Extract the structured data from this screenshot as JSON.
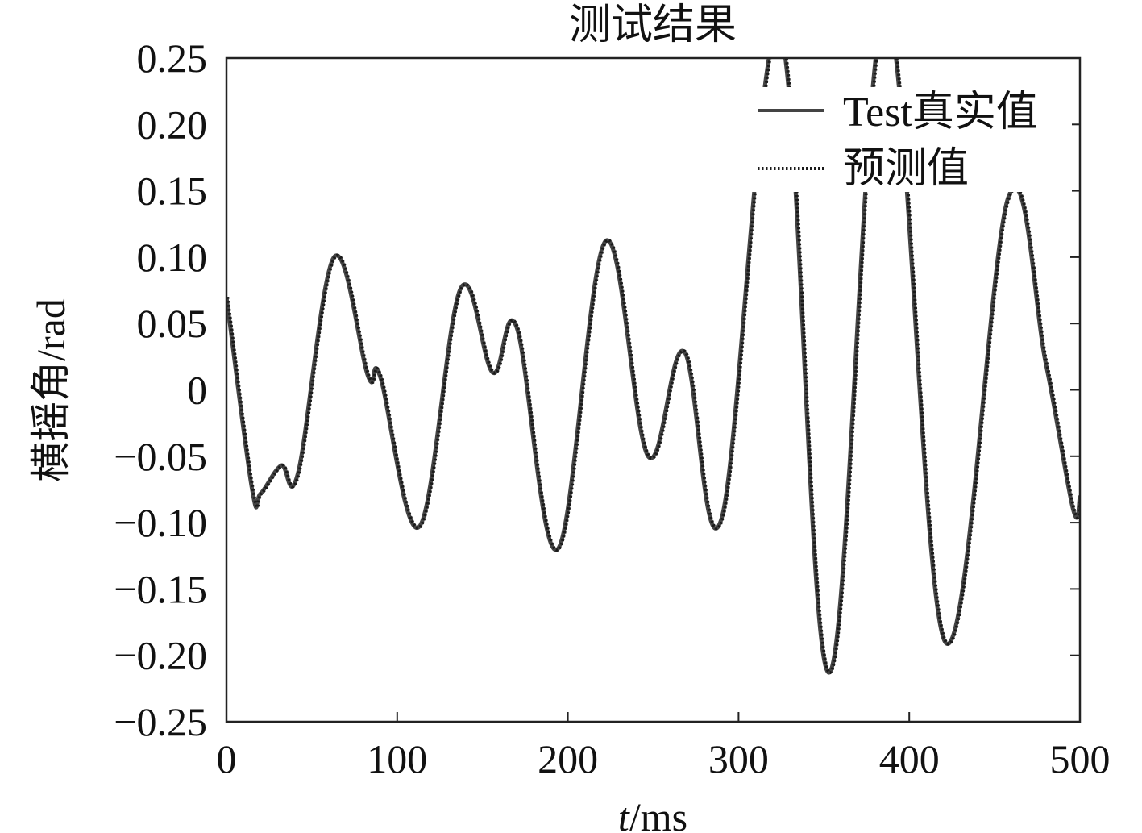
{
  "chart_data": {
    "type": "line",
    "title": "测试结果",
    "xlabel_var": "t",
    "xlabel_unit": "/ms",
    "ylabel": "横摇角/rad",
    "xlim": [
      0,
      500
    ],
    "ylim": [
      -0.25,
      0.25
    ],
    "x_ticks": [
      0,
      100,
      200,
      300,
      400,
      500
    ],
    "x_tick_labels": [
      "0",
      "100",
      "200",
      "300",
      "400",
      "500"
    ],
    "y_ticks": [
      0.25,
      0.2,
      0.15,
      0.1,
      0.05,
      0,
      -0.05,
      -0.1,
      -0.15,
      -0.2,
      -0.25
    ],
    "y_tick_labels": [
      "0.25",
      "0.20",
      "0.15",
      "0.10",
      "0.05",
      "0",
      "−0.05",
      "−0.10",
      "−0.15",
      "−0.20",
      "−0.25"
    ],
    "grid": false,
    "legend_position": "top-right",
    "keypoints": [
      [
        0,
        0.07
      ],
      [
        15,
        -0.075
      ],
      [
        20,
        -0.078
      ],
      [
        32,
        -0.057
      ],
      [
        42,
        -0.062
      ],
      [
        63,
        0.1
      ],
      [
        83,
        0.01
      ],
      [
        90,
        0.01
      ],
      [
        113,
        -0.103
      ],
      [
        137,
        0.076
      ],
      [
        156,
        0.013
      ],
      [
        170,
        0.047
      ],
      [
        194,
        -0.12
      ],
      [
        222,
        0.112
      ],
      [
        247,
        -0.05
      ],
      [
        268,
        0.029
      ],
      [
        290,
        -0.097
      ],
      [
        324,
        0.27
      ],
      [
        353,
        -0.213
      ],
      [
        386,
        0.285
      ],
      [
        421,
        -0.19
      ],
      [
        458,
        0.145
      ],
      [
        480,
        0.02
      ],
      [
        496,
        -0.09
      ],
      [
        500,
        -0.08
      ]
    ],
    "series": [
      {
        "name": "Test真实值",
        "style": "solid",
        "color": "#444444",
        "width": 5
      },
      {
        "name": "预测值",
        "style": "dotted",
        "color": "#1a1a1a",
        "width": 4
      }
    ]
  }
}
